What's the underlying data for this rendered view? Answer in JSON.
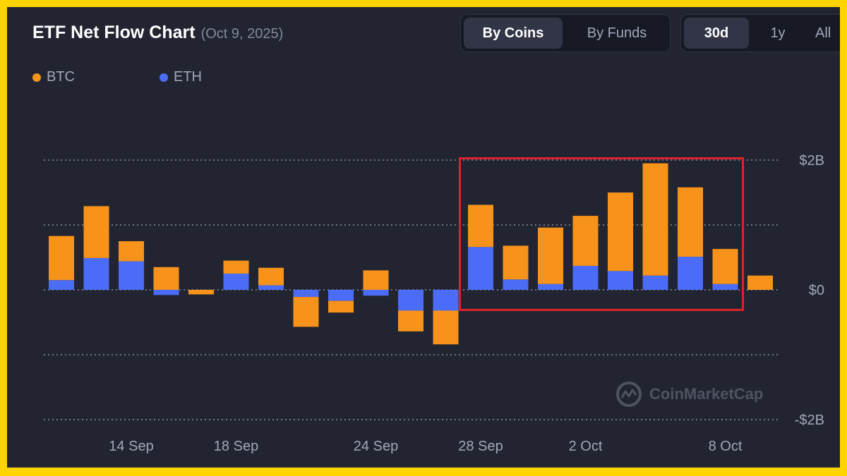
{
  "header": {
    "title": "ETF Net Flow Chart",
    "date": "(Oct 9, 2025)"
  },
  "toggle_view": {
    "options": [
      "By Coins",
      "By Funds"
    ],
    "selected": "By Coins"
  },
  "toggle_range": {
    "options": [
      "30d",
      "1y",
      "All"
    ],
    "selected": "30d"
  },
  "legend": {
    "items": [
      {
        "label": "BTC",
        "color": "#f7931a"
      },
      {
        "label": "ETH",
        "color": "#4a6cf7"
      }
    ]
  },
  "watermark": {
    "text": "CoinMarketCap",
    "icon": "coinmarketcap-logo-icon"
  },
  "annotation": {
    "highlight_box_color": "#e0202a"
  },
  "chart_data": {
    "type": "bar",
    "stacked": true,
    "y_tick_labels": [
      "$2B",
      "$0",
      "-$2B"
    ],
    "y_ticks": [
      2,
      1,
      0,
      -1,
      -2
    ],
    "ylim": [
      -2,
      2
    ],
    "y_units": "billion USD",
    "grid": true,
    "legend_placement": "top-left",
    "x_tick_labels": [
      {
        "label": "14 Sep",
        "index": 2
      },
      {
        "label": "18 Sep",
        "index": 5
      },
      {
        "label": "24 Sep",
        "index": 9
      },
      {
        "label": "28 Sep",
        "index": 12
      },
      {
        "label": "2 Oct",
        "index": 15
      },
      {
        "label": "8 Oct",
        "index": 19
      }
    ],
    "series": [
      {
        "name": "BTC",
        "color": "#f7931a",
        "values": [
          0.68,
          0.8,
          0.31,
          0.35,
          -0.07,
          0.2,
          0.27,
          -0.46,
          -0.18,
          0.3,
          -0.32,
          -0.52,
          0.65,
          0.52,
          0.87,
          0.77,
          1.21,
          1.73,
          1.07,
          0.54,
          0.22
        ]
      },
      {
        "name": "ETH",
        "color": "#4a6cf7",
        "values": [
          0.15,
          0.49,
          0.44,
          -0.08,
          0.0,
          0.25,
          0.07,
          -0.11,
          -0.17,
          -0.09,
          -0.32,
          -0.32,
          0.66,
          0.16,
          0.09,
          0.37,
          0.29,
          0.22,
          0.51,
          0.09,
          0.0
        ]
      }
    ]
  }
}
